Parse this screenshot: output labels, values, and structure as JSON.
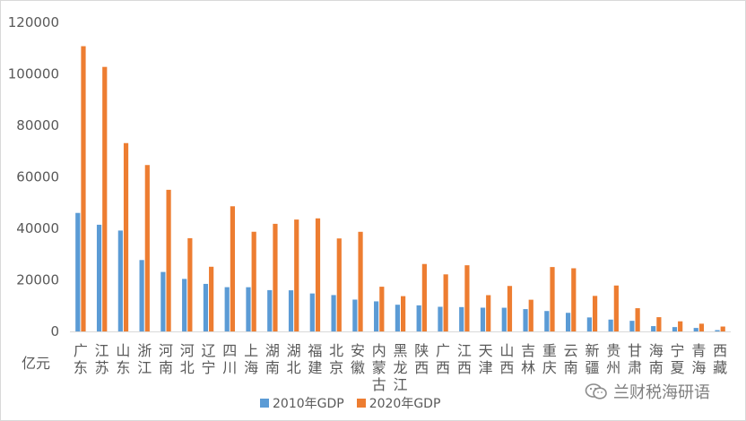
{
  "chart_data": {
    "type": "bar",
    "ylabel": "亿元",
    "ylim": [
      0,
      120000
    ],
    "yticks": [
      "0",
      "20000",
      "40000",
      "60000",
      "80000",
      "100000",
      "120000"
    ],
    "grid": false,
    "legend_position": "bottom",
    "categories": [
      [
        "广",
        "东"
      ],
      [
        "江",
        "苏"
      ],
      [
        "山",
        "东"
      ],
      [
        "浙",
        "江"
      ],
      [
        "河",
        "南"
      ],
      [
        "河",
        "北"
      ],
      [
        "辽",
        "宁"
      ],
      [
        "四",
        "川"
      ],
      [
        "上",
        "海"
      ],
      [
        "湖",
        "南"
      ],
      [
        "湖",
        "北"
      ],
      [
        "福",
        "建"
      ],
      [
        "北",
        "京"
      ],
      [
        "安",
        "徽"
      ],
      [
        "内",
        "蒙",
        "古"
      ],
      [
        "黑",
        "龙",
        "江"
      ],
      [
        "陕",
        "西"
      ],
      [
        "广",
        "西"
      ],
      [
        "江",
        "西"
      ],
      [
        "天",
        "津"
      ],
      [
        "山",
        "西"
      ],
      [
        "吉",
        "林"
      ],
      [
        "重",
        "庆"
      ],
      [
        "云",
        "南"
      ],
      [
        "新",
        "疆"
      ],
      [
        "贵",
        "州"
      ],
      [
        "甘",
        "肃"
      ],
      [
        "海",
        "南"
      ],
      [
        "宁",
        "夏"
      ],
      [
        "青",
        "海"
      ],
      [
        "西",
        "藏"
      ]
    ],
    "series": [
      {
        "name": "2010年GDP",
        "color": "#5b9bd5",
        "values": [
          46013,
          41425,
          39170,
          27722,
          23092,
          20394,
          18457,
          17185,
          17166,
          16038,
          15968,
          14737,
          14114,
          12359,
          11672,
          10369,
          10123,
          9570,
          9451,
          9224,
          9200,
          8668,
          7926,
          7224,
          5437,
          4602,
          4121,
          2065,
          1690,
          1350,
          507
        ]
      },
      {
        "name": "2020年GDP",
        "color": "#ed7d31",
        "values": [
          110761,
          102719,
          73129,
          64613,
          54997,
          36207,
          25115,
          48599,
          38701,
          41781,
          43443,
          43904,
          36103,
          38681,
          17360,
          13699,
          26182,
          22157,
          25692,
          14084,
          17652,
          12311,
          25003,
          24522,
          13798,
          17827,
          9017,
          5532,
          3921,
          3006,
          1903
        ]
      }
    ]
  },
  "watermark": {
    "text": "兰财税海研语"
  }
}
